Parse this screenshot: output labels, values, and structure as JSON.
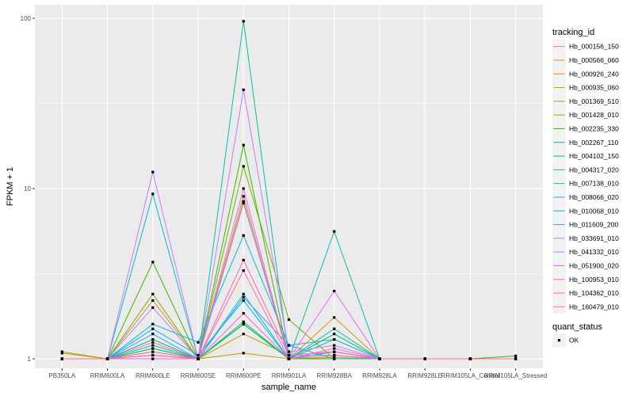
{
  "chart_data": {
    "type": "line",
    "xlabel": "sample_name",
    "ylabel": "FPKM + 1",
    "y_scale": "log10",
    "ylim": [
      0.88,
      120
    ],
    "y_ticks": [
      1,
      10,
      100
    ],
    "y_tick_labels": [
      "1",
      "10",
      "100"
    ],
    "grid": true,
    "legend_placement": "right",
    "categories": [
      "PB350LA",
      "RRIM600LA",
      "RRIM600LE",
      "RRIM600SE",
      "RRIM600PE",
      "RRIM901LA",
      "RRIM928BA",
      "RRIM928LA",
      "RRIM928LE",
      "RRIM105LA_Control",
      "RRIM105LA_Stressed"
    ],
    "legend": {
      "color_title": "tracking_id",
      "shape_title": "quant_status",
      "shape_entries": [
        "OK"
      ]
    },
    "series": [
      {
        "name": "Hb_000156_150",
        "color": "#F8766D",
        "values": [
          1.0,
          1.0,
          1.1,
          1.0,
          1.6,
          1.0,
          1.1,
          1.0,
          1.0,
          1.0,
          1.0
        ]
      },
      {
        "name": "Hb_000566_060",
        "color": "#EA8331",
        "values": [
          1.0,
          1.0,
          2.2,
          1.0,
          9.0,
          1.0,
          1.1,
          1.0,
          1.0,
          1.0,
          1.0
        ]
      },
      {
        "name": "Hb_000926_240",
        "color": "#D89000",
        "values": [
          1.0,
          1.0,
          1.05,
          1.0,
          8.4,
          1.0,
          1.75,
          1.0,
          1.0,
          1.0,
          1.0
        ]
      },
      {
        "name": "Hb_000935_060",
        "color": "#C09B00",
        "values": [
          1.1,
          1.0,
          1.0,
          1.0,
          1.08,
          1.0,
          1.02,
          1.0,
          1.0,
          1.0,
          1.0
        ]
      },
      {
        "name": "Hb_001369_510",
        "color": "#A3A500",
        "values": [
          1.08,
          1.0,
          1.15,
          1.0,
          1.4,
          1.05,
          1.05,
          1.0,
          1.0,
          1.0,
          1.0
        ]
      },
      {
        "name": "Hb_001428_010",
        "color": "#7CAE00",
        "values": [
          1.0,
          1.0,
          2.4,
          1.0,
          13.5,
          1.7,
          1.0,
          1.0,
          1.0,
          1.0,
          1.0
        ]
      },
      {
        "name": "Hb_002235_330",
        "color": "#39B600",
        "values": [
          1.0,
          1.0,
          3.7,
          1.0,
          18.0,
          1.0,
          1.0,
          1.0,
          1.0,
          1.0,
          1.04
        ]
      },
      {
        "name": "Hb_002267_110",
        "color": "#00BB4E",
        "values": [
          1.0,
          1.0,
          1.3,
          1.0,
          1.6,
          1.0,
          1.4,
          1.0,
          1.0,
          1.0,
          1.0
        ]
      },
      {
        "name": "Hb_004102_150",
        "color": "#00BF7D",
        "values": [
          1.0,
          1.0,
          1.15,
          1.0,
          1.65,
          1.0,
          1.3,
          1.0,
          1.0,
          1.0,
          1.0
        ]
      },
      {
        "name": "Hb_004317_020",
        "color": "#00C1A3",
        "values": [
          1.0,
          1.0,
          1.2,
          1.0,
          96.0,
          1.0,
          5.6,
          1.0,
          1.0,
          1.0,
          1.0
        ]
      },
      {
        "name": "Hb_007138_010",
        "color": "#00BFC4",
        "values": [
          1.0,
          1.0,
          9.3,
          1.0,
          2.4,
          1.0,
          1.5,
          1.0,
          1.0,
          1.0,
          1.0
        ]
      },
      {
        "name": "Hb_008066_020",
        "color": "#00BAE0",
        "values": [
          1.0,
          1.0,
          1.6,
          1.25,
          5.3,
          1.2,
          1.0,
          1.0,
          1.0,
          1.0,
          1.0
        ]
      },
      {
        "name": "Hb_010068_010",
        "color": "#00B0F6",
        "values": [
          1.0,
          1.0,
          1.5,
          1.05,
          2.2,
          1.0,
          1.1,
          1.0,
          1.0,
          1.0,
          1.0
        ]
      },
      {
        "name": "Hb_011609_200",
        "color": "#35A2FF",
        "values": [
          1.0,
          1.0,
          1.4,
          1.0,
          2.3,
          1.2,
          1.3,
          1.0,
          1.0,
          1.0,
          1.0
        ]
      },
      {
        "name": "Hb_033691_010",
        "color": "#9590FF",
        "values": [
          1.0,
          1.0,
          2.0,
          1.0,
          8.2,
          1.05,
          1.05,
          1.0,
          1.0,
          1.0,
          1.0
        ]
      },
      {
        "name": "Hb_041332_010",
        "color": "#C77CFF",
        "values": [
          1.0,
          1.0,
          12.5,
          1.0,
          38.0,
          1.1,
          1.2,
          1.0,
          1.0,
          1.0,
          1.0
        ]
      },
      {
        "name": "Hb_051900_020",
        "color": "#E76BF3",
        "values": [
          1.0,
          1.0,
          1.0,
          1.0,
          10.0,
          1.0,
          2.5,
          1.0,
          1.0,
          1.0,
          1.0
        ]
      },
      {
        "name": "Hb_100953_010",
        "color": "#FA62DB",
        "values": [
          1.0,
          1.0,
          1.25,
          1.0,
          1.85,
          1.0,
          1.15,
          1.0,
          1.0,
          1.0,
          1.0
        ]
      },
      {
        "name": "Hb_104362_010",
        "color": "#FF62BC",
        "values": [
          1.0,
          1.0,
          1.1,
          1.0,
          3.8,
          1.05,
          1.1,
          1.0,
          1.0,
          1.0,
          1.0
        ]
      },
      {
        "name": "Hb_160479_010",
        "color": "#FF6C91",
        "values": [
          1.0,
          1.0,
          1.05,
          1.0,
          3.3,
          1.0,
          1.05,
          1.0,
          1.0,
          1.0,
          1.0
        ]
      }
    ]
  }
}
